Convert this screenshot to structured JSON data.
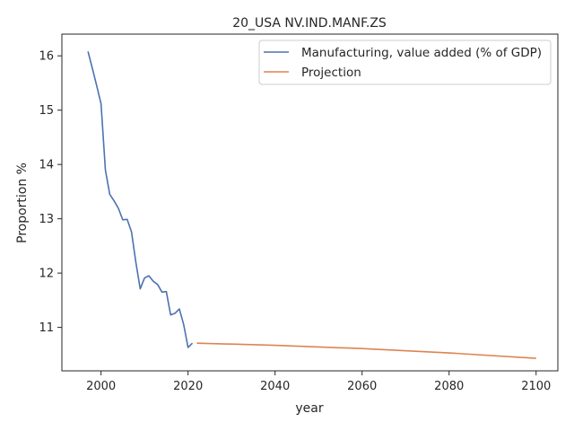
{
  "chart_data": {
    "type": "line",
    "title": "20_USA NV.IND.MANF.ZS",
    "xlabel": "year",
    "ylabel": "Proportion %",
    "xlim": [
      1991,
      2105
    ],
    "ylim": [
      10.2,
      16.4
    ],
    "xticks": [
      2000,
      2020,
      2040,
      2060,
      2080,
      2100
    ],
    "yticks": [
      11,
      12,
      13,
      14,
      15,
      16
    ],
    "grid": false,
    "legend_position": "top-right",
    "series": [
      {
        "name": "Manufacturing, value added (% of GDP)",
        "color": "#4c72b0",
        "x": [
          1997,
          1998,
          1999,
          2000,
          2001,
          2002,
          2003,
          2004,
          2005,
          2006,
          2007,
          2008,
          2009,
          2010,
          2011,
          2012,
          2013,
          2014,
          2015,
          2016,
          2017,
          2018,
          2019,
          2020,
          2021
        ],
        "y": [
          16.08,
          15.77,
          15.45,
          15.12,
          13.9,
          13.45,
          13.33,
          13.19,
          12.98,
          12.99,
          12.76,
          12.2,
          11.71,
          11.91,
          11.95,
          11.85,
          11.79,
          11.65,
          11.66,
          11.23,
          11.26,
          11.34,
          11.05,
          10.63,
          10.71
        ]
      },
      {
        "name": "Projection",
        "color": "#dd8452",
        "x": [
          2022,
          2040,
          2060,
          2080,
          2100
        ],
        "y": [
          10.71,
          10.67,
          10.61,
          10.53,
          10.43
        ]
      }
    ]
  }
}
